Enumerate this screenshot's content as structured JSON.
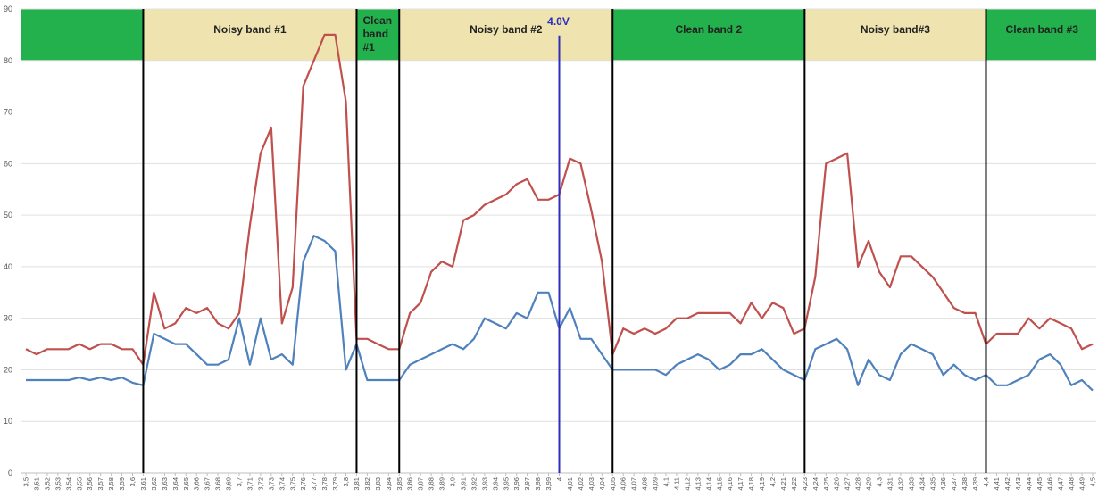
{
  "chart_data": {
    "type": "line",
    "ylim": [
      0,
      90
    ],
    "yticks": [
      0,
      10,
      20,
      30,
      40,
      50,
      60,
      70,
      80,
      90
    ],
    "x": [
      "3,5",
      "3,51",
      "3,52",
      "3,53",
      "3,54",
      "3,55",
      "3,56",
      "3,57",
      "3,58",
      "3,59",
      "3,6",
      "3,61",
      "3,62",
      "3,63",
      "3,64",
      "3,65",
      "3,66",
      "3,67",
      "3,68",
      "3,69",
      "3,7",
      "3,71",
      "3,72",
      "3,73",
      "3,74",
      "3,75",
      "3,76",
      "3,77",
      "3,78",
      "3,79",
      "3,8",
      "3,81",
      "3,82",
      "3,83",
      "3,84",
      "3,85",
      "3,86",
      "3,87",
      "3,88",
      "3,89",
      "3,9",
      "3,91",
      "3,92",
      "3,93",
      "3,94",
      "3,95",
      "3,96",
      "3,97",
      "3,98",
      "3,99",
      "4",
      "4,01",
      "4,02",
      "4,03",
      "4,04",
      "4,05",
      "4,06",
      "4,07",
      "4,08",
      "4,09",
      "4,1",
      "4,11",
      "4,12",
      "4,13",
      "4,14",
      "4,15",
      "4,16",
      "4,17",
      "4,18",
      "4,19",
      "4,2",
      "4,21",
      "4,22",
      "4,23",
      "4,24",
      "4,25",
      "4,26",
      "4,27",
      "4,28",
      "4,29",
      "4,3",
      "4,31",
      "4,32",
      "4,33",
      "4,34",
      "4,35",
      "4,36",
      "4,37",
      "4,38",
      "4,39",
      "4,4",
      "4,41",
      "4,42",
      "4,43",
      "4,44",
      "4,45",
      "4,46",
      "4,47",
      "4,48",
      "4,49",
      "4,5"
    ],
    "series": [
      {
        "color": "#c0504d",
        "values": [
          24,
          23,
          24,
          24,
          24,
          25,
          24,
          25,
          25,
          24,
          24,
          21,
          35,
          28,
          29,
          32,
          31,
          32,
          29,
          28,
          31,
          48,
          62,
          67,
          29,
          36,
          75,
          80,
          85,
          85,
          72,
          26,
          26,
          25,
          24,
          24,
          31,
          33,
          39,
          41,
          40,
          49,
          50,
          52,
          53,
          54,
          56,
          57,
          53,
          53,
          54,
          61,
          60,
          51,
          41,
          23,
          28,
          27,
          28,
          27,
          28,
          30,
          30,
          31,
          31,
          31,
          31,
          29,
          33,
          30,
          33,
          32,
          27,
          28,
          38,
          60,
          61,
          62,
          40,
          45,
          39,
          36,
          42,
          42,
          40,
          38,
          35,
          32,
          31,
          31,
          25,
          27,
          27,
          27,
          30,
          28,
          30,
          29,
          28,
          24,
          25
        ]
      },
      {
        "color": "#4f81bd",
        "values": [
          18,
          18,
          18,
          18,
          18,
          18.5,
          18,
          18.5,
          18,
          18.5,
          17.5,
          17,
          27,
          26,
          25,
          25,
          23,
          21,
          21,
          22,
          30,
          21,
          30,
          22,
          23,
          21,
          41,
          46,
          45,
          43,
          20,
          25,
          18,
          18,
          18,
          18,
          21,
          22,
          23,
          24,
          25,
          24,
          26,
          30,
          29,
          28,
          31,
          30,
          35,
          35,
          28,
          32,
          26,
          26,
          23,
          20,
          20,
          20,
          20,
          20,
          19,
          21,
          22,
          23,
          22,
          20,
          21,
          23,
          23,
          24,
          22,
          20,
          19,
          18,
          24,
          25,
          26,
          24,
          17,
          22,
          19,
          18,
          23,
          25,
          24,
          23,
          19,
          21,
          19,
          18,
          19,
          17,
          17,
          18,
          19,
          22,
          23,
          21,
          17,
          18,
          16
        ]
      }
    ],
    "bands": [
      {
        "label": "",
        "start": -0.5,
        "end": 11,
        "color": "#22b14c"
      },
      {
        "label": "Noisy band #1",
        "start": 11,
        "end": 31,
        "color": "#efe4b0"
      },
      {
        "label": "Clean band #1",
        "start": 31,
        "end": 35,
        "color": "#22b14c"
      },
      {
        "label": "Noisy band #2",
        "start": 35,
        "end": 55,
        "color": "#efe4b0"
      },
      {
        "label": "Clean band 2",
        "start": 55,
        "end": 73,
        "color": "#22b14c"
      },
      {
        "label": "Noisy band#3",
        "start": 73,
        "end": 90,
        "color": "#efe4b0"
      },
      {
        "label": "Clean band #3",
        "start": 90,
        "end": 100.5,
        "color": "#22b14c"
      }
    ],
    "band_range": [
      80,
      90
    ],
    "dividers": [
      "3,61",
      "3,81",
      "3,85",
      "4,05",
      "4,23",
      "4,4"
    ],
    "marker": {
      "label": "4.0V",
      "x": "4",
      "color": "#2e2eb8"
    }
  }
}
